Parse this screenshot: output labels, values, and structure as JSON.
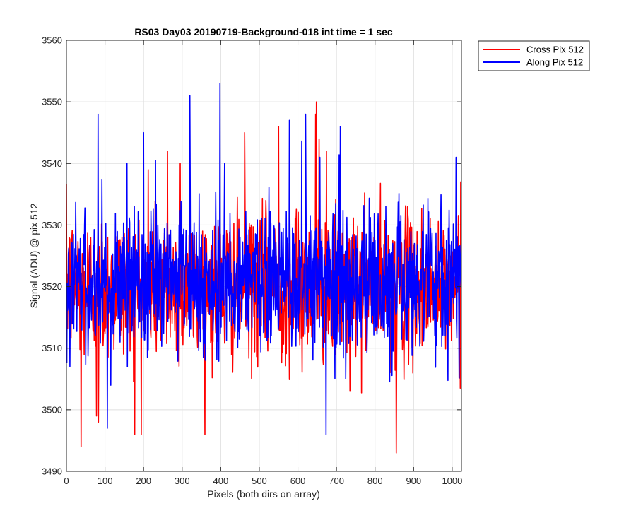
{
  "chart_data": {
    "type": "line",
    "title": "RS03 Day03 20190719-Background-018 int time = 1 sec",
    "xlabel": "Pixels (both dirs on array)",
    "ylabel": "Signal (ADU) @ pix 512",
    "xlim": [
      0,
      1024
    ],
    "ylim": [
      3490,
      3560
    ],
    "xticks": [
      0,
      100,
      200,
      300,
      400,
      500,
      600,
      700,
      800,
      900,
      1000
    ],
    "yticks": [
      3490,
      3500,
      3510,
      3520,
      3530,
      3540,
      3550,
      3560
    ],
    "xtick_labels": [
      "0",
      "100",
      "200",
      "300",
      "400",
      "500",
      "600",
      "700",
      "800",
      "900",
      "1000"
    ],
    "ytick_labels": [
      "3490",
      "3500",
      "3510",
      "3520",
      "3530",
      "3540",
      "3550",
      "3560"
    ],
    "grid": true,
    "legend_position": "outside-top-right",
    "series": [
      {
        "name": "Cross Pix 512",
        "color": "#ff0000",
        "n_points": 1024,
        "mean": 3520,
        "std": 6,
        "min": 3493,
        "max": 3550,
        "notable_points": [
          {
            "x": 38,
            "y": 3494
          },
          {
            "x": 78,
            "y": 3499
          },
          {
            "x": 83,
            "y": 3498
          },
          {
            "x": 177,
            "y": 3496
          },
          {
            "x": 262,
            "y": 3542
          },
          {
            "x": 212,
            "y": 3539
          },
          {
            "x": 295,
            "y": 3540
          },
          {
            "x": 462,
            "y": 3545
          },
          {
            "x": 550,
            "y": 3546
          },
          {
            "x": 646,
            "y": 3548
          },
          {
            "x": 648,
            "y": 3550
          },
          {
            "x": 655,
            "y": 3544
          },
          {
            "x": 674,
            "y": 3542
          },
          {
            "x": 735,
            "y": 3503
          },
          {
            "x": 855,
            "y": 3493
          },
          {
            "x": 1022,
            "y": 3537
          }
        ]
      },
      {
        "name": "Along Pix 512",
        "color": "#0000ff",
        "n_points": 1024,
        "mean": 3521,
        "std": 6,
        "min": 3496,
        "max": 3553,
        "notable_points": [
          {
            "x": 82,
            "y": 3548
          },
          {
            "x": 106,
            "y": 3497
          },
          {
            "x": 157,
            "y": 3540
          },
          {
            "x": 200,
            "y": 3545
          },
          {
            "x": 320,
            "y": 3551
          },
          {
            "x": 398,
            "y": 3553
          },
          {
            "x": 410,
            "y": 3540
          },
          {
            "x": 578,
            "y": 3547
          },
          {
            "x": 620,
            "y": 3548
          },
          {
            "x": 657,
            "y": 3541
          },
          {
            "x": 673,
            "y": 3496
          },
          {
            "x": 710,
            "y": 3546
          },
          {
            "x": 1010,
            "y": 3541
          }
        ]
      }
    ]
  }
}
